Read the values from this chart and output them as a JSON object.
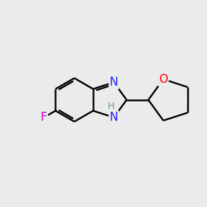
{
  "background_color": "#ebebeb",
  "bond_color": "#000000",
  "bond_width": 1.8,
  "atom_colors": {
    "F": "#cc00cc",
    "N": "#2020ff",
    "O": "#ff0000",
    "H": "#5f9ea0",
    "C": "#000000"
  },
  "font_size_atoms": 12,
  "font_size_h": 10,
  "figsize": [
    3.0,
    3.0
  ],
  "dpi": 100
}
